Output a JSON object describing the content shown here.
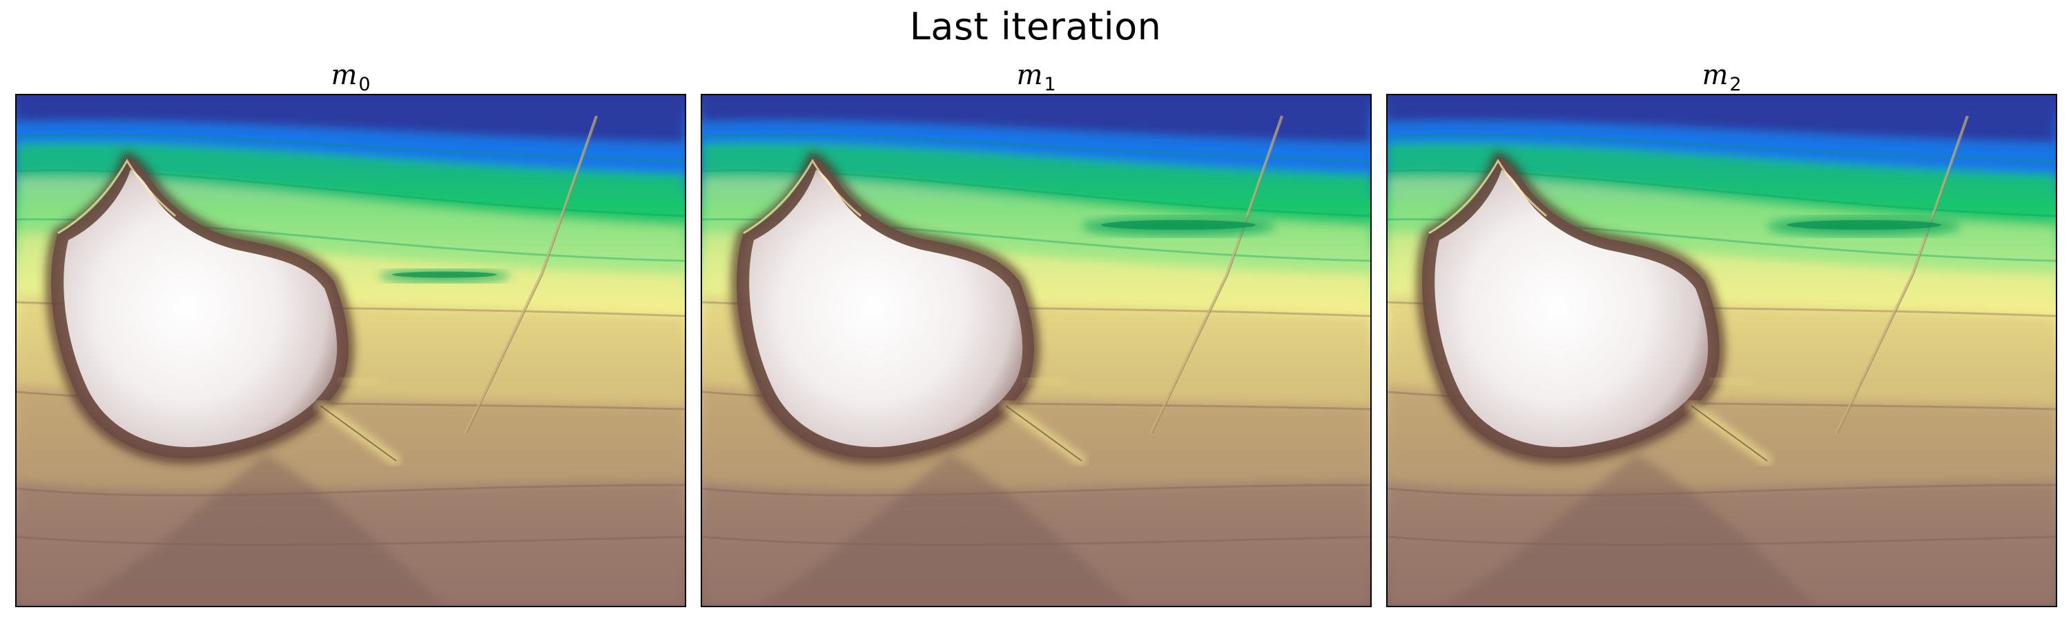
{
  "figure": {
    "title": "Last iteration"
  },
  "panels": [
    {
      "label": "m",
      "subscript": "0"
    },
    {
      "label": "m",
      "subscript": "1"
    },
    {
      "label": "m",
      "subscript": "2"
    }
  ],
  "colormap": {
    "name": "terrain",
    "colors": [
      "#2a3a9e",
      "#1476e6",
      "#19c56a",
      "#a9e88a",
      "#f4f08e",
      "#d8c27e",
      "#9a7a6c",
      "#86665e",
      "#f5f2f2"
    ]
  }
}
